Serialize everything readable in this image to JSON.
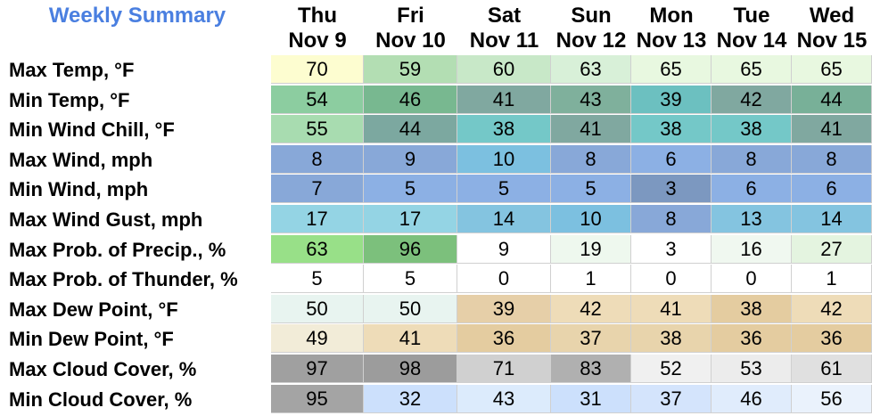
{
  "title": "Weekly Summary",
  "days": [
    {
      "dow": "Thu",
      "date": "Nov 9"
    },
    {
      "dow": "Fri",
      "date": "Nov 10"
    },
    {
      "dow": "Sat",
      "date": "Nov 11"
    },
    {
      "dow": "Sun",
      "date": "Nov 12"
    },
    {
      "dow": "Mon",
      "date": "Nov 13"
    },
    {
      "dow": "Tue",
      "date": "Nov 14"
    },
    {
      "dow": "Wed",
      "date": "Nov 15"
    }
  ],
  "rows": [
    {
      "label": "Max Temp, °F",
      "values": [
        "70",
        "59",
        "60",
        "63",
        "65",
        "65",
        "65"
      ],
      "colors": [
        "#fdfdd0",
        "#b3deb3",
        "#c8e8c8",
        "#d8f0d8",
        "#e8f8e0",
        "#e8f8e0",
        "#e8f8e0"
      ]
    },
    {
      "label": "Min Temp, °F",
      "values": [
        "54",
        "46",
        "41",
        "43",
        "39",
        "42",
        "44"
      ],
      "colors": [
        "#8ccda0",
        "#78b890",
        "#80a8a0",
        "#7fb09c",
        "#6cc0c0",
        "#80a8a0",
        "#78b098"
      ]
    },
    {
      "label": "Min Wind Chill, °F",
      "values": [
        "55",
        "44",
        "38",
        "41",
        "38",
        "38",
        "41"
      ],
      "colors": [
        "#a8dcb0",
        "#7ca8a0",
        "#74c8c8",
        "#80a8a0",
        "#74c8c8",
        "#74c8c8",
        "#80a8a0"
      ]
    },
    {
      "label": "Max Wind, mph",
      "values": [
        "8",
        "9",
        "10",
        "8",
        "6",
        "8",
        "8"
      ],
      "colors": [
        "#88a8d8",
        "#88a8d8",
        "#7cc0e0",
        "#88a8d8",
        "#8cb0e4",
        "#88a8d8",
        "#88a8d8"
      ]
    },
    {
      "label": "Min Wind, mph",
      "values": [
        "7",
        "5",
        "5",
        "5",
        "3",
        "6",
        "6"
      ],
      "colors": [
        "#88a8d8",
        "#8cb0e4",
        "#8cb0e4",
        "#8cb0e4",
        "#7c98c0",
        "#8cb0e4",
        "#8cb0e4"
      ]
    },
    {
      "label": "Max Wind Gust, mph",
      "values": [
        "17",
        "17",
        "14",
        "10",
        "8",
        "13",
        "14"
      ],
      "colors": [
        "#94d4e4",
        "#94d4e4",
        "#84c4e0",
        "#7cc0e0",
        "#88a8d8",
        "#84c4e0",
        "#84c4e0"
      ]
    },
    {
      "label": "Max Prob. of Precip., %",
      "values": [
        "63",
        "96",
        "9",
        "19",
        "3",
        "16",
        "27"
      ],
      "colors": [
        "#98e088",
        "#7cc07c",
        "#ffffff",
        "#eef8ee",
        "#ffffff",
        "#f0f8f0",
        "#e4f4e0"
      ]
    },
    {
      "label": "Max Prob. of Thunder, %",
      "values": [
        "5",
        "5",
        "0",
        "1",
        "0",
        "0",
        "1"
      ],
      "colors": [
        "#ffffff",
        "#ffffff",
        "#ffffff",
        "#ffffff",
        "#ffffff",
        "#ffffff",
        "#ffffff"
      ]
    },
    {
      "label": "Max Dew Point, °F",
      "values": [
        "50",
        "50",
        "39",
        "42",
        "41",
        "38",
        "42"
      ],
      "colors": [
        "#e8f4f0",
        "#e8f4f0",
        "#e6cfa8",
        "#eedcb8",
        "#eedcb8",
        "#e4cca0",
        "#eedcb8"
      ]
    },
    {
      "label": "Min Dew Point, °F",
      "values": [
        "49",
        "41",
        "36",
        "37",
        "38",
        "36",
        "36"
      ],
      "colors": [
        "#f2ecd8",
        "#eedcb8",
        "#e4cca0",
        "#e8d4ac",
        "#e8d4ac",
        "#e4cca0",
        "#e4cca0"
      ]
    },
    {
      "label": "Max Cloud Cover, %",
      "values": [
        "97",
        "98",
        "71",
        "83",
        "52",
        "53",
        "61"
      ],
      "colors": [
        "#a0a0a0",
        "#9c9c9c",
        "#d0d0d0",
        "#b0b0b0",
        "#f0f0f0",
        "#ececec",
        "#e0e0e0"
      ]
    },
    {
      "label": "Min Cloud Cover, %",
      "values": [
        "95",
        "32",
        "43",
        "31",
        "37",
        "46",
        "56"
      ],
      "colors": [
        "#a4a4a4",
        "#cce0fc",
        "#dcebfc",
        "#cce0fc",
        "#d4e4fc",
        "#e0ecfc",
        "#eaf2fc"
      ]
    }
  ]
}
